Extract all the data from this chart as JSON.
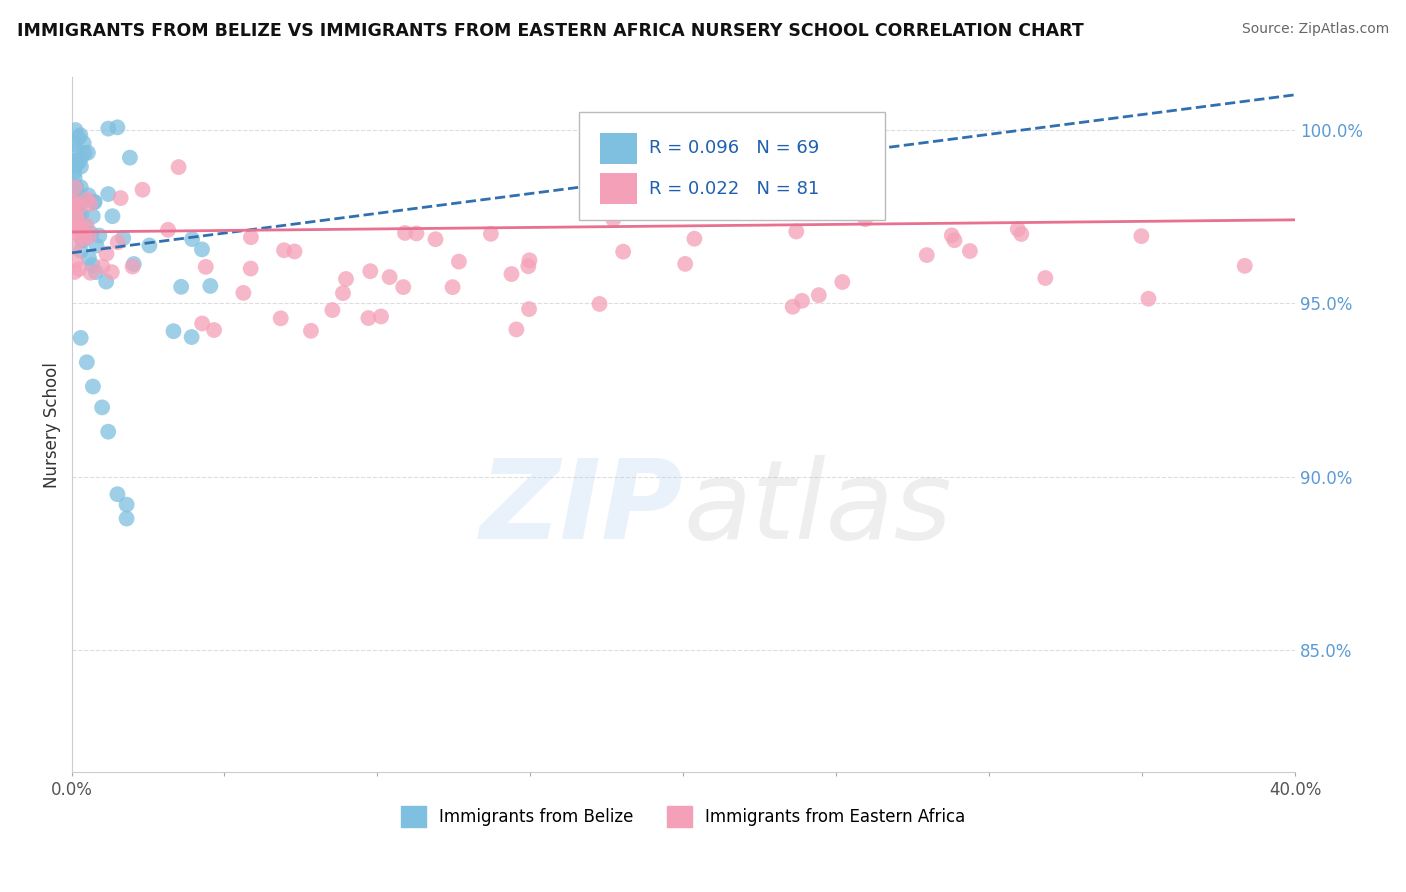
{
  "title": "IMMIGRANTS FROM BELIZE VS IMMIGRANTS FROM EASTERN AFRICA NURSERY SCHOOL CORRELATION CHART",
  "source": "Source: ZipAtlas.com",
  "ylabel": "Nursery School",
  "ytick_labels": [
    "100.0%",
    "95.0%",
    "90.0%",
    "85.0%"
  ],
  "ytick_values": [
    1.0,
    0.95,
    0.9,
    0.85
  ],
  "xlim": [
    0.0,
    0.4
  ],
  "ylim": [
    0.815,
    1.015
  ],
  "legend_blue_r": "R = 0.096",
  "legend_blue_n": "N = 69",
  "legend_pink_r": "R = 0.022",
  "legend_pink_n": "N = 81",
  "blue_color": "#7fbfdf",
  "pink_color": "#f4a0b8",
  "blue_line_color": "#3070b0",
  "pink_line_color": "#e87090",
  "watermark_text": "ZIPatlas",
  "background_color": "#ffffff",
  "grid_color": "#dddddd",
  "blue_r": 0.096,
  "blue_n": 69,
  "pink_r": 0.022,
  "pink_n": 81,
  "blue_line_x0": 0.0,
  "blue_line_y0": 0.9645,
  "blue_line_x1": 0.4,
  "blue_line_y1": 1.01,
  "pink_line_x0": 0.0,
  "pink_line_y0": 0.9705,
  "pink_line_x1": 0.4,
  "pink_line_y1": 0.974
}
